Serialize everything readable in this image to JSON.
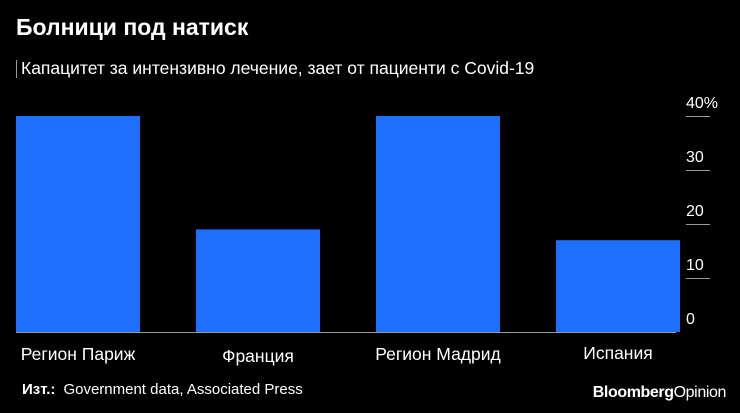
{
  "header": {
    "title": "Болници под натиск",
    "subtitle": "Капацитет за интензивно лечение, зает от пациенти с Covid-19"
  },
  "chart_data": {
    "type": "bar",
    "categories": [
      "Регион Париж",
      "Франция",
      "Регион Мадрид",
      "Испания"
    ],
    "values": [
      40,
      19,
      40,
      17
    ],
    "title": "Болници под натиск",
    "subtitle": "Капацитет за интензивно лечение, зает от пациенти с Covid-19",
    "ylim": [
      0,
      40
    ],
    "yticks": [
      0,
      10,
      20,
      30,
      40
    ],
    "ytick_labels": [
      "0",
      "10",
      "20",
      "30",
      "40%"
    ],
    "y_axis_position": "right",
    "bar_color": "#1f6fff",
    "grid": false
  },
  "footer": {
    "source_label": "Изт.:",
    "source_text": "Government data, Associated Press",
    "brand_main": "Bloomberg",
    "brand_secondary": "Opinion"
  },
  "colors": {
    "background": "#000000",
    "text": "#ffffff",
    "bar": "#1f6fff",
    "axis": "#9a9a9a"
  }
}
